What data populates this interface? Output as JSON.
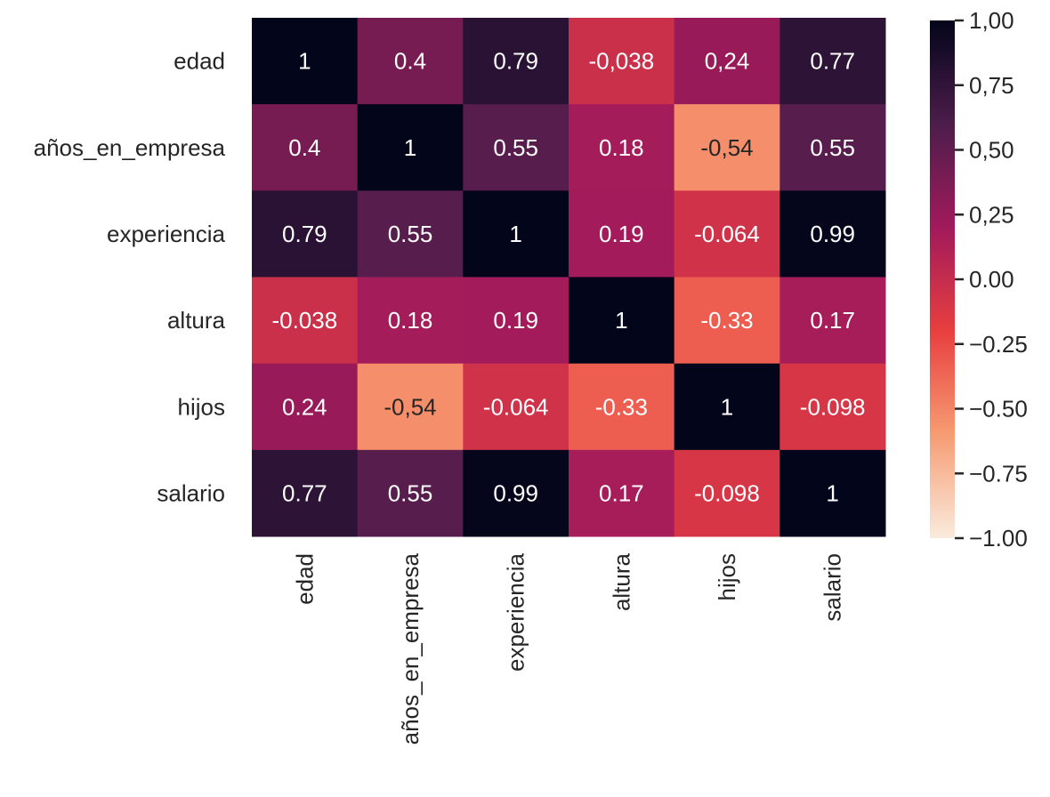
{
  "chart_data": {
    "type": "heatmap",
    "title": "",
    "xlabel": "",
    "ylabel": "",
    "rows": [
      "edad",
      "años_en_empresa",
      "experiencia",
      "altura",
      "hijos",
      "salario"
    ],
    "columns": [
      "edad",
      "años_en_empresa",
      "experiencia",
      "altura",
      "hijos",
      "salario"
    ],
    "values": [
      [
        1,
        0.4,
        0.79,
        -0.038,
        0.24,
        0.77
      ],
      [
        0.4,
        1,
        0.55,
        0.18,
        -0.54,
        0.55
      ],
      [
        0.79,
        0.55,
        1,
        0.19,
        -0.064,
        0.99
      ],
      [
        -0.038,
        0.18,
        0.19,
        1,
        -0.33,
        0.17
      ],
      [
        0.24,
        -0.54,
        -0.064,
        -0.33,
        1,
        -0.098
      ],
      [
        0.77,
        0.55,
        0.99,
        0.17,
        -0.098,
        1
      ]
    ],
    "annotations": [
      [
        "1",
        "0.4",
        "0.79",
        "-0,038",
        "0,24",
        "0.77"
      ],
      [
        "0.4",
        "1",
        "0.55",
        "0.18",
        "-0,54",
        "0.55"
      ],
      [
        "0.79",
        "0.55",
        "1",
        "0.19",
        "-0.064",
        "0.99"
      ],
      [
        "-0.038",
        "0.18",
        "0.19",
        "1",
        "-0.33",
        "0.17"
      ],
      [
        "0.24",
        "-0,54",
        "-0.064",
        "-0.33",
        "1",
        "-0.098"
      ],
      [
        "0.77",
        "0.55",
        "0.99",
        "0.17",
        "-0.098",
        "1"
      ]
    ],
    "colormap": "rocket",
    "vmin": -1,
    "vmax": 1,
    "colorbar": {
      "ticks": [
        1,
        0.75,
        0.5,
        0.25,
        0,
        -0.25,
        -0.5,
        -0.75,
        -1
      ],
      "tick_labels": [
        "1,00",
        "0,75",
        "0,50",
        "0,25",
        "0.00",
        "−0.25",
        "−0.50",
        "−0.75",
        "−1.00"
      ],
      "placement": "right"
    },
    "colors": {
      "rocket_stops": [
        "#03051a",
        "#4c1d4b",
        "#a11a5b",
        "#e83f3f",
        "#f69c73",
        "#faebdd"
      ]
    }
  }
}
